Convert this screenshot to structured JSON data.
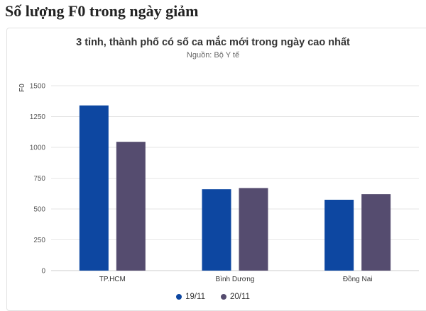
{
  "page": {
    "headline": "Số lượng F0 trong ngày giảm"
  },
  "colors": {
    "series1": "#0d47a1",
    "series2": "#554c6f",
    "grid": "#e6e6e6"
  },
  "chart_data": {
    "type": "bar",
    "title": "3 tỉnh, thành phố có số ca mắc mới trong ngày cao nhất",
    "subtitle": "Nguồn: Bộ Y tế",
    "xlabel": "",
    "ylabel": "F0",
    "ylim": [
      0,
      1500
    ],
    "yticks": [
      0,
      250,
      500,
      750,
      1000,
      1250,
      1500
    ],
    "ytick_labels": [
      "0",
      "250",
      "500",
      "750",
      "1000",
      "1250",
      "1500"
    ],
    "categories": [
      "TP.HCM",
      "Bình Dương",
      "Đồng Nai"
    ],
    "series": [
      {
        "name": "19/11",
        "values": [
          1340,
          660,
          575
        ]
      },
      {
        "name": "20/11",
        "values": [
          1045,
          670,
          620
        ]
      }
    ],
    "legend": "bottom-center",
    "grid": true
  }
}
